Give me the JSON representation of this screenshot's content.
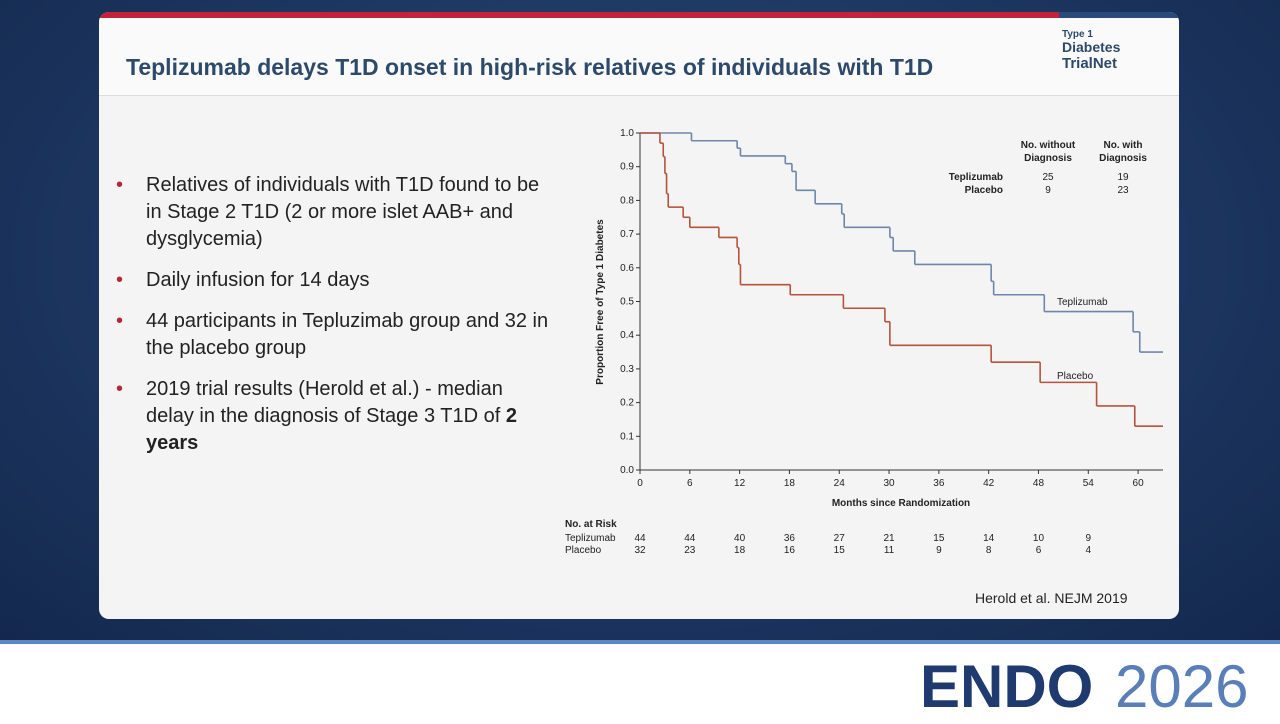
{
  "slide_title": "Teplizumab delays T1D onset in high-risk relatives of individuals with T1D",
  "bullets": [
    "Relatives of individuals with T1D found to be in Stage 2 T1D (2 or more islet AAB+ and dysglycemia)",
    "Daily infusion for 14 days",
    "44 participants in Tepluzimab group and 32 in the placebo group",
    [
      "2019 trial results (Herold et al.)  - median delay in the diagnosis of Stage 3 T1D of ",
      "2 years"
    ]
  ],
  "citation": "Herold et al. NEJM 2019",
  "logos": {
    "trialnet": [
      "Type 1",
      "Diabetes",
      "TrialNet"
    ],
    "endo": "ENDO",
    "year": "2026"
  },
  "chart_data": {
    "type": "step",
    "ylabel": "Proportion Free of Type 1 Diabetes",
    "xlabel": "Months since Randomization",
    "xlim": [
      0,
      63
    ],
    "xticks": [
      0,
      6,
      12,
      18,
      24,
      30,
      36,
      42,
      48,
      54,
      60
    ],
    "ylim": [
      0,
      1
    ],
    "yticks": [
      {
        "value": 0,
        "label": "0.0"
      },
      0.1,
      0.2,
      0.3,
      0.4,
      0.5,
      0.6,
      0.7,
      0.8,
      0.9,
      {
        "value": 1,
        "label": "1.0"
      }
    ],
    "series": [
      {
        "name": "Teplizumab",
        "color": "#6f86ab",
        "x": [
          0,
          6.2,
          11.7,
          12.1,
          17.5,
          18.3,
          18.8,
          21.1,
          24.3,
          24.6,
          30.1,
          30.5,
          33.1,
          42.3,
          42.6,
          48.7,
          59.4,
          60.2
        ],
        "values": [
          1,
          0.977,
          0.955,
          0.932,
          0.909,
          0.886,
          0.83,
          0.79,
          0.76,
          0.72,
          0.69,
          0.65,
          0.61,
          0.56,
          0.52,
          0.47,
          0.41,
          0.35
        ]
      },
      {
        "name": "Placebo",
        "color": "#b5543d",
        "x": [
          0,
          2.4,
          2.8,
          3.0,
          3.2,
          3.4,
          5.2,
          6.0,
          9.5,
          11.7,
          11.9,
          12.1,
          18.1,
          24.5,
          29.5,
          30.1,
          42.3,
          48.2,
          55,
          59.6
        ],
        "values": [
          1,
          0.97,
          0.93,
          0.88,
          0.82,
          0.78,
          0.75,
          0.72,
          0.69,
          0.66,
          0.61,
          0.55,
          0.52,
          0.48,
          0.44,
          0.37,
          0.32,
          0.26,
          0.19,
          0.13
        ]
      }
    ],
    "summary": {
      "headers": [
        "No. without Diagnosis",
        "No. with Diagnosis"
      ],
      "rows": [
        [
          "Teplizumab",
          "25",
          "19"
        ],
        [
          "Placebo",
          "9",
          "23"
        ]
      ]
    },
    "risk_table": {
      "title": "No. at Risk",
      "rows": [
        {
          "label": "Teplizumab",
          "values": [
            "44",
            "44",
            "40",
            "36",
            "27",
            "21",
            "15",
            "14",
            "10",
            "9"
          ]
        },
        {
          "label": "Placebo",
          "values": [
            "32",
            "23",
            "18",
            "16",
            "15",
            "11",
            "9",
            "8",
            "6",
            "4"
          ]
        }
      ]
    }
  }
}
